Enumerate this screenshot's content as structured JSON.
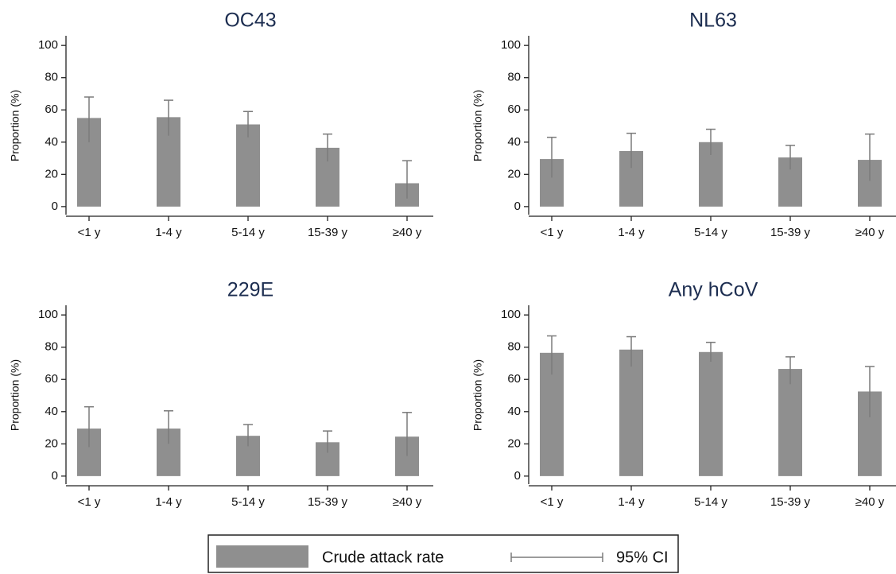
{
  "chart_data": [
    {
      "type": "bar",
      "title": "OC43",
      "y_label": "Proportion (%)",
      "categories": [
        "<1 y",
        "1-4 y",
        "5-14 y",
        "15-39 y",
        "≥40 y"
      ],
      "values": [
        55,
        55.5,
        51,
        36.5,
        14.5
      ],
      "ci_low": [
        40,
        44,
        43,
        28,
        5
      ],
      "ci_high": [
        68,
        66,
        59,
        45,
        28.5
      ],
      "color": "#8f8f8f",
      "ci_color": "#7a7a7a",
      "ylim": [
        -5,
        106
      ],
      "yticks": [
        0,
        20,
        40,
        60,
        80,
        100
      ]
    },
    {
      "type": "bar",
      "title": "NL63",
      "y_label": "Proportion (%)",
      "categories": [
        "<1 y",
        "1-4 y",
        "5-14 y",
        "15-39 y",
        "≥40 y"
      ],
      "values": [
        29.5,
        34.5,
        40,
        30.5,
        29
      ],
      "ci_low": [
        18,
        24,
        32,
        23,
        16
      ],
      "ci_high": [
        43,
        45.5,
        48,
        38,
        45
      ],
      "color": "#8f8f8f",
      "ci_color": "#7a7a7a",
      "ylim": [
        -5,
        106
      ],
      "yticks": [
        0,
        20,
        40,
        60,
        80,
        100
      ]
    },
    {
      "type": "bar",
      "title": "229E",
      "y_label": "Proportion (%)",
      "categories": [
        "<1 y",
        "1-4 y",
        "5-14 y",
        "15-39 y",
        "≥40 y"
      ],
      "values": [
        29.5,
        29.5,
        25,
        21,
        24.5
      ],
      "ci_low": [
        18,
        20,
        18.5,
        14.5,
        12.5
      ],
      "ci_high": [
        43,
        40.5,
        32,
        28,
        39.5
      ],
      "color": "#8f8f8f",
      "ci_color": "#7a7a7a",
      "ylim": [
        -5,
        106
      ],
      "yticks": [
        0,
        20,
        40,
        60,
        80,
        100
      ]
    },
    {
      "type": "bar",
      "title": "Any hCoV",
      "y_label": "Proportion (%)",
      "categories": [
        "<1 y",
        "1-4 y",
        "5-14 y",
        "15-39 y",
        "≥40 y"
      ],
      "values": [
        76.5,
        78.5,
        77,
        66.5,
        52.5
      ],
      "ci_low": [
        63,
        68,
        71,
        57,
        36.5
      ],
      "ci_high": [
        87,
        86.5,
        83,
        74,
        68
      ],
      "color": "#8f8f8f",
      "ci_color": "#7a7a7a",
      "ylim": [
        -5,
        106
      ],
      "yticks": [
        0,
        20,
        40,
        60,
        80,
        100
      ]
    }
  ],
  "legend": {
    "bar_label": "Crude attack rate",
    "ci_label": "95% CI"
  }
}
